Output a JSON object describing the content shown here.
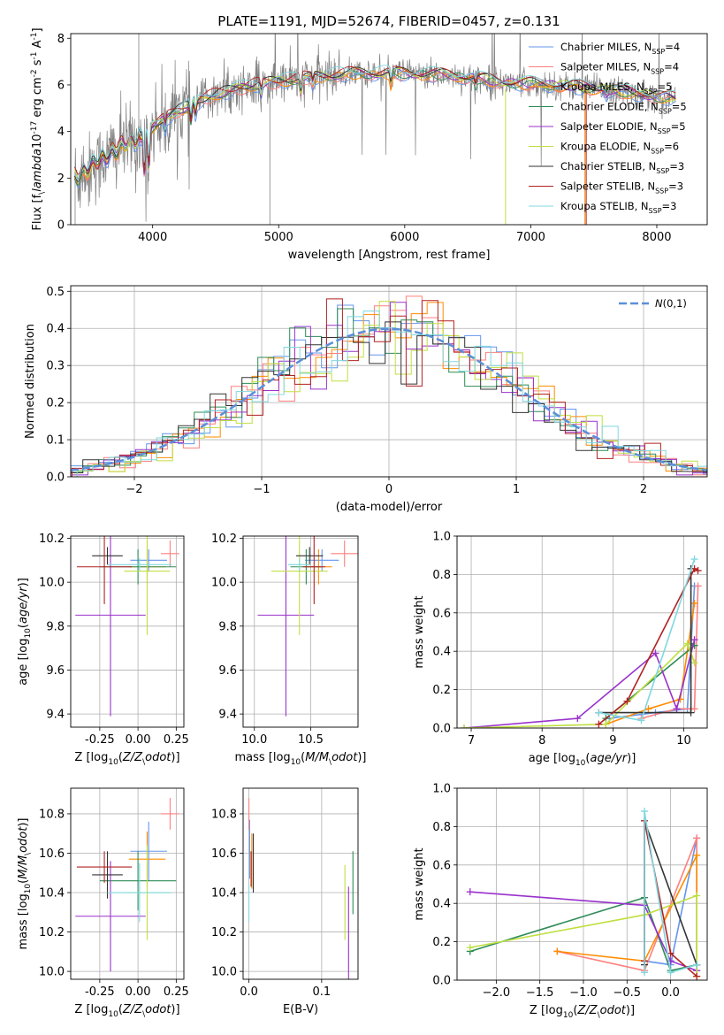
{
  "figure": {
    "title": "PLATE=1191, MJD=52674, FIBERID=0457, z=0.131"
  },
  "colors": {
    "chabrier_miles": "#6495ed",
    "salpeter_miles": "#ff7f7f",
    "kroupa_miles": "#ff8c00",
    "chabrier_elodie": "#2e8b57",
    "salpeter_elodie": "#9932cc",
    "kroupa_elodie": "#bfdf40",
    "chabrier_stelib": "#333333",
    "salpeter_stelib": "#b22222",
    "kroupa_stelib": "#7fd8e0",
    "data": "#808080",
    "normal": "#5b8fd9"
  },
  "chart_data": [
    {
      "id": "spectrum",
      "type": "line",
      "xlabel": "wavelength [Angstrom, rest frame]",
      "ylabel": "Flux [f$_\\lambda$10$^{-17}$ erg cm$^{-2}$ s$^{-1}$ A$^{-1}$]",
      "xlim": [
        3350,
        8400
      ],
      "ylim": [
        0,
        8.2
      ],
      "xticks": [
        4000,
        5000,
        6000,
        7000,
        8000
      ],
      "yticks": [
        0,
        2,
        4,
        6,
        8
      ],
      "legend_loc": "right",
      "legend": [
        {
          "label": "Chabrier MILES, N$_{SSP}$=4",
          "color_key": "chabrier_miles"
        },
        {
          "label": "Salpeter MILES, N$_{SSP}$=4",
          "color_key": "salpeter_miles"
        },
        {
          "label": "Kroupa MILES, N$_{SSP}$=5",
          "color_key": "kroupa_miles"
        },
        {
          "label": "Chabrier ELODIE, N$_{SSP}$=5",
          "color_key": "chabrier_elodie"
        },
        {
          "label": "Salpeter ELODIE, N$_{SSP}$=5",
          "color_key": "salpeter_elodie"
        },
        {
          "label": "Kroupa ELODIE, N$_{SSP}$=6",
          "color_key": "kroupa_elodie"
        },
        {
          "label": "Chabrier STELIB, N$_{SSP}$=3",
          "color_key": "chabrier_stelib"
        },
        {
          "label": "Salpeter STELIB, N$_{SSP}$=3",
          "color_key": "salpeter_stelib"
        },
        {
          "label": "Kroupa STELIB, N$_{SSP}$=3",
          "color_key": "kroupa_stelib"
        }
      ],
      "continuum": [
        [
          3350,
          1.9
        ],
        [
          3500,
          2.4
        ],
        [
          3700,
          3.2
        ],
        [
          3900,
          3.7
        ],
        [
          4000,
          4.2
        ],
        [
          4200,
          4.9
        ],
        [
          4500,
          5.6
        ],
        [
          4800,
          6.0
        ],
        [
          5200,
          6.3
        ],
        [
          5600,
          6.5
        ],
        [
          6000,
          6.5
        ],
        [
          6400,
          6.4
        ],
        [
          6800,
          6.1
        ],
        [
          7200,
          6.0
        ],
        [
          7600,
          5.8
        ],
        [
          8000,
          5.5
        ],
        [
          8150,
          5.4
        ]
      ]
    },
    {
      "id": "residuals",
      "type": "bar",
      "xlabel": "(data-model)/error",
      "ylabel": "Normed distribution",
      "xlim": [
        -2.5,
        2.5
      ],
      "ylim": [
        0,
        0.515
      ],
      "xticks": [
        -2,
        -1,
        0,
        1,
        2
      ],
      "yticks": [
        0.0,
        0.1,
        0.2,
        0.3,
        0.4,
        0.5
      ],
      "legend": [
        {
          "label": "$\\mathcal{N}(0,1)$",
          "color_key": "normal"
        }
      ],
      "legend_loc": "upper right"
    },
    {
      "id": "age_vs_Z",
      "type": "scatter",
      "xlabel": "Z [log$_{10}$($Z/Z_\\odot$)]",
      "ylabel": "age  [log$_{10}$($age/yr$)]",
      "xlim": [
        -0.44,
        0.3
      ],
      "ylim": [
        9.34,
        10.21
      ],
      "xticks": [
        -0.25,
        0.0,
        0.25
      ],
      "xticklabels": [
        "-0.25",
        "0.00",
        "0.25"
      ],
      "yticks": [
        9.4,
        9.6,
        9.8,
        10.0,
        10.2
      ],
      "points": [
        {
          "c": "chabrier_miles",
          "x": 0.07,
          "y": 10.1,
          "xerr": 0.12,
          "yerr": 0.05
        },
        {
          "c": "salpeter_miles",
          "x": 0.21,
          "y": 10.13,
          "xerr": 0.06,
          "yerr": 0.06
        },
        {
          "c": "kroupa_miles",
          "x": 0.06,
          "y": 10.07,
          "xerr": 0.12,
          "yerr": 0.08
        },
        {
          "c": "chabrier_elodie",
          "x": 0.0,
          "y": 10.07,
          "xerr": 0.25,
          "yerr": 0.08
        },
        {
          "c": "salpeter_elodie",
          "x": -0.18,
          "y": 9.85,
          "xerr": 0.23,
          "yerr": 0.46
        },
        {
          "c": "kroupa_elodie",
          "x": 0.06,
          "y": 10.05,
          "xerr": 0.15,
          "yerr": 0.29
        },
        {
          "c": "chabrier_stelib",
          "x": -0.2,
          "y": 10.12,
          "xerr": 0.1,
          "yerr": 0.04
        },
        {
          "c": "salpeter_stelib",
          "x": -0.22,
          "y": 10.07,
          "xerr": 0.18,
          "yerr": 0.17
        },
        {
          "c": "kroupa_stelib",
          "x": 0.01,
          "y": 10.08,
          "xerr": 0.21,
          "yerr": 0.03
        }
      ]
    },
    {
      "id": "age_vs_mass",
      "type": "scatter",
      "xlabel": "mass [log$_{10}$($M/M_\\odot$)]",
      "ylabel": "",
      "xlim": [
        9.9,
        10.92
      ],
      "ylim": [
        9.34,
        10.21
      ],
      "xticks": [
        10.0,
        10.5
      ],
      "xticklabels": [
        "10.0",
        "10.5"
      ],
      "yticks": [
        9.4,
        9.6,
        9.8,
        10.0,
        10.2
      ],
      "points": [
        {
          "c": "chabrier_miles",
          "x": 10.6,
          "y": 10.1,
          "xerr": 0.15,
          "yerr": 0.05
        },
        {
          "c": "salpeter_miles",
          "x": 10.8,
          "y": 10.13,
          "xerr": 0.12,
          "yerr": 0.06
        },
        {
          "c": "kroupa_miles",
          "x": 10.57,
          "y": 10.07,
          "xerr": 0.12,
          "yerr": 0.08
        },
        {
          "c": "chabrier_elodie",
          "x": 10.46,
          "y": 10.07,
          "xerr": 0.14,
          "yerr": 0.08
        },
        {
          "c": "salpeter_elodie",
          "x": 10.28,
          "y": 9.85,
          "xerr": 0.25,
          "yerr": 0.46
        },
        {
          "c": "kroupa_elodie",
          "x": 10.4,
          "y": 10.05,
          "xerr": 0.25,
          "yerr": 0.29
        },
        {
          "c": "chabrier_stelib",
          "x": 10.49,
          "y": 10.12,
          "xerr": 0.12,
          "yerr": 0.04
        },
        {
          "c": "salpeter_stelib",
          "x": 10.53,
          "y": 10.07,
          "xerr": 0.1,
          "yerr": 0.17
        },
        {
          "c": "kroupa_stelib",
          "x": 10.4,
          "y": 10.08,
          "xerr": 0.1,
          "yerr": 0.03
        }
      ]
    },
    {
      "id": "mass_vs_Z",
      "type": "scatter",
      "xlabel": "Z [log$_{10}$($Z/Z_\\odot$)]",
      "ylabel": "mass [log$_{10}$($M/M_\\odot$)]",
      "xlim": [
        -0.44,
        0.3
      ],
      "ylim": [
        9.96,
        10.93
      ],
      "xticks": [
        -0.25,
        0.0,
        0.25
      ],
      "xticklabels": [
        "-0.25",
        "0.00",
        "0.25"
      ],
      "yticks": [
        10.0,
        10.2,
        10.4,
        10.6,
        10.8
      ],
      "points": [
        {
          "c": "chabrier_miles",
          "x": 0.07,
          "y": 10.61,
          "xerr": 0.12,
          "yerr": 0.15
        },
        {
          "c": "salpeter_miles",
          "x": 0.21,
          "y": 10.8,
          "xerr": 0.06,
          "yerr": 0.08
        },
        {
          "c": "kroupa_miles",
          "x": 0.06,
          "y": 10.57,
          "xerr": 0.12,
          "yerr": 0.14
        },
        {
          "c": "chabrier_elodie",
          "x": 0.0,
          "y": 10.46,
          "xerr": 0.25,
          "yerr": 0.15
        },
        {
          "c": "salpeter_elodie",
          "x": -0.18,
          "y": 10.28,
          "xerr": 0.23,
          "yerr": 0.28
        },
        {
          "c": "kroupa_elodie",
          "x": 0.06,
          "y": 10.4,
          "xerr": 0.15,
          "yerr": 0.24
        },
        {
          "c": "chabrier_stelib",
          "x": -0.2,
          "y": 10.49,
          "xerr": 0.1,
          "yerr": 0.12
        },
        {
          "c": "salpeter_stelib",
          "x": -0.22,
          "y": 10.53,
          "xerr": 0.18,
          "yerr": 0.08
        },
        {
          "c": "kroupa_stelib",
          "x": 0.01,
          "y": 10.4,
          "xerr": 0.21,
          "yerr": 0.15
        }
      ]
    },
    {
      "id": "mass_vs_ebv",
      "type": "scatter",
      "xlabel": "E(B-V)",
      "ylabel": "",
      "xlim": [
        -0.008,
        0.15
      ],
      "ylim": [
        9.96,
        10.93
      ],
      "xticks": [
        0.0,
        0.1
      ],
      "xticklabels": [
        "0.0",
        "0.1"
      ],
      "yticks": [
        10.0,
        10.2,
        10.4,
        10.6,
        10.8
      ],
      "points": [
        {
          "c": "chabrier_miles",
          "x": 0.001,
          "y": 10.62,
          "xerr": 0,
          "yerr": 0.15
        },
        {
          "c": "salpeter_miles",
          "x": 0.0,
          "y": 10.8,
          "xerr": 0,
          "yerr": 0.08
        },
        {
          "c": "kroupa_miles",
          "x": 0.004,
          "y": 10.56,
          "xerr": 0,
          "yerr": 0.14
        },
        {
          "c": "chabrier_elodie",
          "x": 0.143,
          "y": 10.45,
          "xerr": 0,
          "yerr": 0.16
        },
        {
          "c": "salpeter_elodie",
          "x": 0.137,
          "y": 10.19,
          "xerr": 0,
          "yerr": 0.24
        },
        {
          "c": "kroupa_elodie",
          "x": 0.132,
          "y": 10.35,
          "xerr": 0,
          "yerr": 0.19
        },
        {
          "c": "chabrier_stelib",
          "x": 0.006,
          "y": 10.55,
          "xerr": 0,
          "yerr": 0.15
        },
        {
          "c": "salpeter_stelib",
          "x": 0.003,
          "y": 10.52,
          "xerr": 0,
          "yerr": 0.09
        },
        {
          "c": "kroupa_stelib",
          "x": 0.0,
          "y": 10.35,
          "xerr": 0,
          "yerr": 0.1
        }
      ]
    },
    {
      "id": "weight_vs_age",
      "type": "line",
      "xlabel": "age  [log$_{10}$($age/yr$)]",
      "ylabel": "mass weight",
      "xlim": [
        6.8,
        10.33
      ],
      "ylim": [
        0,
        1.0
      ],
      "xticks": [
        7,
        8,
        9,
        10
      ],
      "yticks": [
        0.0,
        0.2,
        0.4,
        0.6,
        0.8,
        1.0
      ],
      "series": [
        {
          "c": "chabrier_miles",
          "x": [
            8.95,
            9.6,
            10.05,
            10.15
          ],
          "y": [
            0.05,
            0.08,
            0.1,
            0.74
          ]
        },
        {
          "c": "salpeter_miles",
          "x": [
            9.4,
            9.9,
            10.15,
            10.2
          ],
          "y": [
            0.05,
            0.1,
            0.1,
            0.74
          ]
        },
        {
          "c": "kroupa_miles",
          "x": [
            8.9,
            9.5,
            9.95,
            10.15
          ],
          "y": [
            0.02,
            0.1,
            0.15,
            0.65
          ]
        },
        {
          "c": "chabrier_elodie",
          "x": [
            8.9,
            10.15,
            10.1
          ],
          "y": [
            0.05,
            0.43,
            0.44
          ]
        },
        {
          "c": "salpeter_elodie",
          "x": [
            6.9,
            8.5,
            9.6,
            9.9,
            10.15
          ],
          "y": [
            0.0,
            0.05,
            0.39,
            0.1,
            0.46
          ]
        },
        {
          "c": "kroupa_elodie",
          "x": [
            6.9,
            8.9,
            10.05,
            10.15
          ],
          "y": [
            0.0,
            0.02,
            0.44,
            0.34
          ]
        },
        {
          "c": "chabrier_stelib",
          "x": [
            8.8,
            10.1,
            10.1
          ],
          "y": [
            0.08,
            0.08,
            0.83
          ]
        },
        {
          "c": "salpeter_stelib",
          "x": [
            8.8,
            9.2,
            10.15,
            10.2
          ],
          "y": [
            0.02,
            0.14,
            0.83,
            0.82
          ]
        },
        {
          "c": "kroupa_stelib",
          "x": [
            8.8,
            9.4,
            10.15
          ],
          "y": [
            0.08,
            0.04,
            0.88
          ]
        }
      ]
    },
    {
      "id": "weight_vs_Z",
      "type": "line",
      "xlabel": "Z [log$_{10}$($Z/Z_\\odot$)]",
      "ylabel": "mass weight",
      "xlim": [
        -2.45,
        0.42
      ],
      "ylim": [
        0,
        1.0
      ],
      "xticks": [
        -2.0,
        -1.5,
        -1.0,
        -0.5,
        0.0
      ],
      "xticklabels": [
        "−2.0",
        "−1.5",
        "−1.0",
        "−0.5",
        "0.0"
      ],
      "yticks": [
        0.0,
        0.2,
        0.4,
        0.6,
        0.8,
        1.0
      ],
      "series": [
        {
          "c": "chabrier_miles",
          "x": [
            -0.3,
            0.0,
            0.3,
            0.3
          ],
          "y": [
            0.1,
            0.08,
            0.74,
            0.05
          ]
        },
        {
          "c": "salpeter_miles",
          "x": [
            -1.3,
            -0.3,
            0.3,
            0.3
          ],
          "y": [
            0.15,
            0.05,
            0.74,
            0.08
          ]
        },
        {
          "c": "kroupa_miles",
          "x": [
            -1.3,
            -0.3,
            0.3,
            0.3
          ],
          "y": [
            0.15,
            0.1,
            0.65,
            0.02
          ]
        },
        {
          "c": "chabrier_elodie",
          "x": [
            -2.3,
            -0.3,
            0.0,
            0.3
          ],
          "y": [
            0.15,
            0.43,
            0.05,
            0.08
          ]
        },
        {
          "c": "salpeter_elodie",
          "x": [
            -2.3,
            -0.3,
            0.0,
            0.3
          ],
          "y": [
            0.46,
            0.39,
            0.1,
            0.05
          ]
        },
        {
          "c": "kroupa_elodie",
          "x": [
            -2.3,
            -0.3,
            0.3,
            0.3
          ],
          "y": [
            0.17,
            0.34,
            0.44,
            0.02
          ]
        },
        {
          "c": "chabrier_stelib",
          "x": [
            -0.3,
            -0.3,
            0.3
          ],
          "y": [
            0.08,
            0.83,
            0.08
          ]
        },
        {
          "c": "salpeter_stelib",
          "x": [
            -0.3,
            -0.3,
            0.0,
            0.3
          ],
          "y": [
            0.1,
            0.83,
            0.14,
            0.02
          ]
        },
        {
          "c": "kroupa_stelib",
          "x": [
            -0.3,
            -0.3,
            0.0,
            0.3
          ],
          "y": [
            0.04,
            0.88,
            0.04,
            0.08
          ]
        }
      ]
    }
  ]
}
